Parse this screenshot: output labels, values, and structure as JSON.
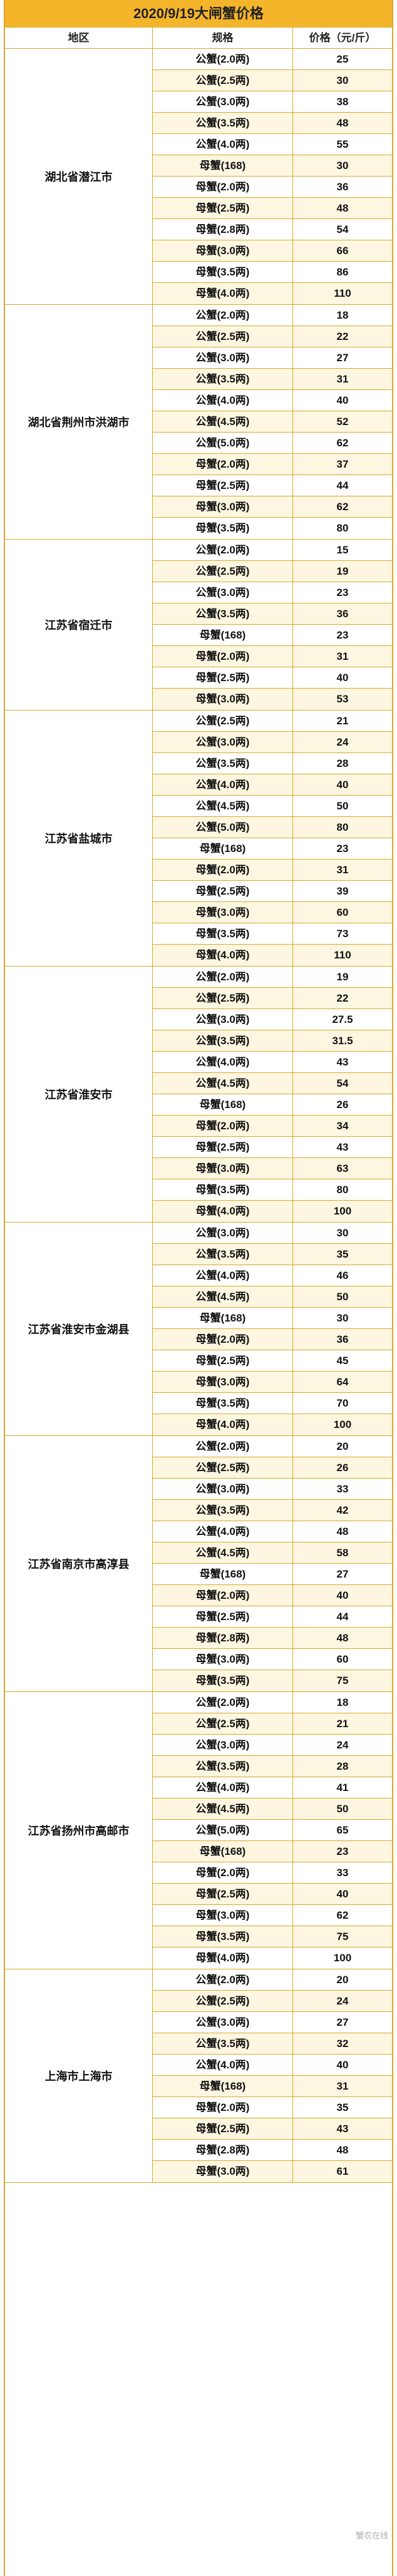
{
  "title": "2020/9/19大闸蟹价格",
  "headers": {
    "region": "地区",
    "spec": "规格",
    "price": "价格（元/斤）"
  },
  "watermark": "蟹农在线",
  "groups": [
    {
      "region": "湖北省潜江市",
      "rows": [
        {
          "spec": "公蟹(2.0两)",
          "price": "25"
        },
        {
          "spec": "公蟹(2.5两)",
          "price": "30"
        },
        {
          "spec": "公蟹(3.0两)",
          "price": "38"
        },
        {
          "spec": "公蟹(3.5两)",
          "price": "48"
        },
        {
          "spec": "公蟹(4.0两)",
          "price": "55"
        },
        {
          "spec": "母蟹(168)",
          "price": "30"
        },
        {
          "spec": "母蟹(2.0两)",
          "price": "36"
        },
        {
          "spec": "母蟹(2.5两)",
          "price": "48"
        },
        {
          "spec": "母蟹(2.8两)",
          "price": "54"
        },
        {
          "spec": "母蟹(3.0两)",
          "price": "66"
        },
        {
          "spec": "母蟹(3.5两)",
          "price": "86"
        },
        {
          "spec": "母蟹(4.0两)",
          "price": "110"
        }
      ]
    },
    {
      "region": "湖北省荆州市洪湖市",
      "rows": [
        {
          "spec": "公蟹(2.0两)",
          "price": "18"
        },
        {
          "spec": "公蟹(2.5两)",
          "price": "22"
        },
        {
          "spec": "公蟹(3.0两)",
          "price": "27"
        },
        {
          "spec": "公蟹(3.5两)",
          "price": "31"
        },
        {
          "spec": "公蟹(4.0两)",
          "price": "40"
        },
        {
          "spec": "公蟹(4.5两)",
          "price": "52"
        },
        {
          "spec": "公蟹(5.0两)",
          "price": "62"
        },
        {
          "spec": "母蟹(2.0两)",
          "price": "37"
        },
        {
          "spec": "母蟹(2.5两)",
          "price": "44"
        },
        {
          "spec": "母蟹(3.0两)",
          "price": "62"
        },
        {
          "spec": "母蟹(3.5两)",
          "price": "80"
        }
      ]
    },
    {
      "region": "江苏省宿迁市",
      "rows": [
        {
          "spec": "公蟹(2.0两)",
          "price": "15"
        },
        {
          "spec": "公蟹(2.5两)",
          "price": "19"
        },
        {
          "spec": "公蟹(3.0两)",
          "price": "23"
        },
        {
          "spec": "公蟹(3.5两)",
          "price": "36"
        },
        {
          "spec": "母蟹(168)",
          "price": "23"
        },
        {
          "spec": "母蟹(2.0两)",
          "price": "31"
        },
        {
          "spec": "母蟹(2.5两)",
          "price": "40"
        },
        {
          "spec": "母蟹(3.0两)",
          "price": "53"
        }
      ]
    },
    {
      "region": "江苏省盐城市",
      "rows": [
        {
          "spec": "公蟹(2.5两)",
          "price": "21"
        },
        {
          "spec": "公蟹(3.0两)",
          "price": "24"
        },
        {
          "spec": "公蟹(3.5两)",
          "price": "28"
        },
        {
          "spec": "公蟹(4.0两)",
          "price": "40"
        },
        {
          "spec": "公蟹(4.5两)",
          "price": "50"
        },
        {
          "spec": "公蟹(5.0两)",
          "price": "80"
        },
        {
          "spec": "母蟹(168)",
          "price": "23"
        },
        {
          "spec": "母蟹(2.0两)",
          "price": "31"
        },
        {
          "spec": "母蟹(2.5两)",
          "price": "39"
        },
        {
          "spec": "母蟹(3.0两)",
          "price": "60"
        },
        {
          "spec": "母蟹(3.5两)",
          "price": "73"
        },
        {
          "spec": "母蟹(4.0两)",
          "price": "110"
        }
      ]
    },
    {
      "region": "江苏省淮安市",
      "rows": [
        {
          "spec": "公蟹(2.0两)",
          "price": "19"
        },
        {
          "spec": "公蟹(2.5两)",
          "price": "22"
        },
        {
          "spec": "公蟹(3.0两)",
          "price": "27.5"
        },
        {
          "spec": "公蟹(3.5两)",
          "price": "31.5"
        },
        {
          "spec": "公蟹(4.0两)",
          "price": "43"
        },
        {
          "spec": "公蟹(4.5两)",
          "price": "54"
        },
        {
          "spec": "母蟹(168)",
          "price": "26"
        },
        {
          "spec": "母蟹(2.0两)",
          "price": "34"
        },
        {
          "spec": "母蟹(2.5两)",
          "price": "43"
        },
        {
          "spec": "母蟹(3.0两)",
          "price": "63"
        },
        {
          "spec": "母蟹(3.5两)",
          "price": "80"
        },
        {
          "spec": "母蟹(4.0两)",
          "price": "100"
        }
      ]
    },
    {
      "region": "江苏省淮安市金湖县",
      "rows": [
        {
          "spec": "公蟹(3.0两)",
          "price": "30"
        },
        {
          "spec": "公蟹(3.5两)",
          "price": "35"
        },
        {
          "spec": "公蟹(4.0两)",
          "price": "46"
        },
        {
          "spec": "公蟹(4.5两)",
          "price": "50"
        },
        {
          "spec": "母蟹(168)",
          "price": "30"
        },
        {
          "spec": "母蟹(2.0两)",
          "price": "36"
        },
        {
          "spec": "母蟹(2.5两)",
          "price": "45"
        },
        {
          "spec": "母蟹(3.0两)",
          "price": "64"
        },
        {
          "spec": "母蟹(3.5两)",
          "price": "70"
        },
        {
          "spec": "母蟹(4.0两)",
          "price": "100"
        }
      ]
    },
    {
      "region": "江苏省南京市高淳县",
      "rows": [
        {
          "spec": "公蟹(2.0两)",
          "price": "20"
        },
        {
          "spec": "公蟹(2.5两)",
          "price": "26"
        },
        {
          "spec": "公蟹(3.0两)",
          "price": "33"
        },
        {
          "spec": "公蟹(3.5两)",
          "price": "42"
        },
        {
          "spec": "公蟹(4.0两)",
          "price": "48"
        },
        {
          "spec": "公蟹(4.5两)",
          "price": "58"
        },
        {
          "spec": "母蟹(168)",
          "price": "27"
        },
        {
          "spec": "母蟹(2.0两)",
          "price": "40"
        },
        {
          "spec": "母蟹(2.5两)",
          "price": "44"
        },
        {
          "spec": "母蟹(2.8两)",
          "price": "48"
        },
        {
          "spec": "母蟹(3.0两)",
          "price": "60"
        },
        {
          "spec": "母蟹(3.5两)",
          "price": "75"
        }
      ]
    },
    {
      "region": "江苏省扬州市高邮市",
      "rows": [
        {
          "spec": "公蟹(2.0两)",
          "price": "18"
        },
        {
          "spec": "公蟹(2.5两)",
          "price": "21"
        },
        {
          "spec": "公蟹(3.0两)",
          "price": "24"
        },
        {
          "spec": "公蟹(3.5两)",
          "price": "28"
        },
        {
          "spec": "公蟹(4.0两)",
          "price": "41"
        },
        {
          "spec": "公蟹(4.5两)",
          "price": "50"
        },
        {
          "spec": "公蟹(5.0两)",
          "price": "65"
        },
        {
          "spec": "母蟹(168)",
          "price": "23"
        },
        {
          "spec": "母蟹(2.0两)",
          "price": "33"
        },
        {
          "spec": "母蟹(2.5两)",
          "price": "40"
        },
        {
          "spec": "母蟹(3.0两)",
          "price": "62"
        },
        {
          "spec": "母蟹(3.5两)",
          "price": "75"
        },
        {
          "spec": "母蟹(4.0两)",
          "price": "100"
        }
      ]
    },
    {
      "region": "上海市上海市",
      "rows": [
        {
          "spec": "公蟹(2.0两)",
          "price": "20"
        },
        {
          "spec": "公蟹(2.5两)",
          "price": "24"
        },
        {
          "spec": "公蟹(3.0两)",
          "price": "27"
        },
        {
          "spec": "公蟹(3.5两)",
          "price": "32"
        },
        {
          "spec": "公蟹(4.0两)",
          "price": "40"
        },
        {
          "spec": "母蟹(168)",
          "price": "31"
        },
        {
          "spec": "母蟹(2.0两)",
          "price": "35"
        },
        {
          "spec": "母蟹(2.5两)",
          "price": "43"
        },
        {
          "spec": "母蟹(2.8两)",
          "price": "48"
        },
        {
          "spec": "母蟹(3.0两)",
          "price": "61"
        }
      ]
    }
  ]
}
